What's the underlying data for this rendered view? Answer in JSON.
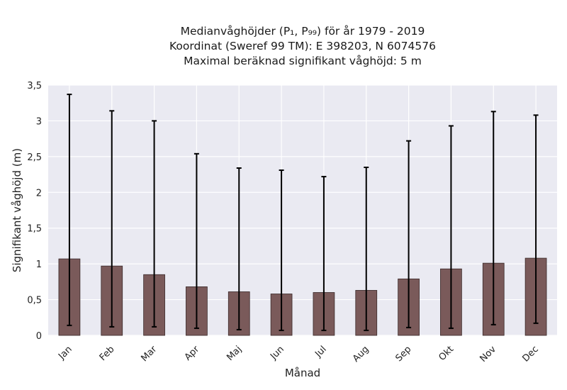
{
  "chart_data": {
    "type": "bar",
    "title_lines": [
      "Medianvåghöjder (P₁, P₉₉) för år 1979 - 2019",
      "Koordinat (Sweref 99 TM): E 398203, N 6074576",
      "Maximal beräknad signifikant våghöjd: 5 m"
    ],
    "xlabel": "Månad",
    "ylabel": "Signifikant våghöjd (m)",
    "categories": [
      "Jan",
      "Feb",
      "Mar",
      "Apr",
      "Maj",
      "Jun",
      "Jul",
      "Aug",
      "Sep",
      "Okt",
      "Nov",
      "Dec"
    ],
    "values": [
      1.07,
      0.97,
      0.85,
      0.68,
      0.61,
      0.58,
      0.6,
      0.63,
      0.79,
      0.93,
      1.01,
      1.08
    ],
    "p1": [
      0.14,
      0.12,
      0.12,
      0.1,
      0.08,
      0.07,
      0.07,
      0.07,
      0.11,
      0.1,
      0.15,
      0.17
    ],
    "p99": [
      3.37,
      3.14,
      3.0,
      2.54,
      2.34,
      2.31,
      2.22,
      2.35,
      2.72,
      2.93,
      3.13,
      3.08
    ],
    "ylim": [
      0,
      3.5
    ],
    "yticks": [
      0,
      0.5,
      1,
      1.5,
      2,
      2.5,
      3,
      3.5
    ],
    "ytick_labels": [
      "0",
      "0,5",
      "1",
      "1,5",
      "2",
      "2,5",
      "3",
      "3,5"
    ],
    "grid": true,
    "colors": {
      "bar": "#7a5a5a",
      "bar_edge": "#3a2a2a",
      "errorbar": "#000000",
      "background": "#eaeaf2",
      "grid": "#ffffff"
    }
  }
}
